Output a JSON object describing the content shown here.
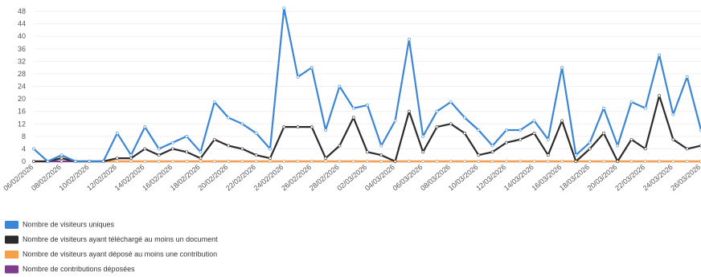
{
  "chart_data": {
    "type": "line",
    "categories": [
      "06/02/2026",
      null,
      "08/02/2026",
      null,
      "10/02/2026",
      null,
      "12/02/2026",
      null,
      "14/02/2026",
      null,
      "16/02/2026",
      null,
      "18/02/2026",
      null,
      "20/02/2026",
      null,
      "22/02/2026",
      null,
      "24/02/2026",
      null,
      "26/02/2026",
      null,
      "28/02/2026",
      null,
      "02/03/2026",
      null,
      "04/03/2026",
      null,
      "06/03/2026",
      null,
      "08/03/2026",
      null,
      "10/03/2026",
      null,
      "12/03/2026",
      null,
      "14/03/2026",
      null,
      "16/03/2026",
      null,
      "18/03/2026",
      null,
      "20/03/2026",
      null,
      "22/03/2026",
      null,
      "24/03/2026",
      null,
      "26/03/2026"
    ],
    "series": [
      {
        "name": "Nombre de visiteurs uniques",
        "color": "#3b86d6",
        "values": [
          4,
          0,
          2,
          0,
          0,
          0,
          9,
          2,
          11,
          4,
          6,
          8,
          3,
          19,
          14,
          12,
          9,
          4,
          49,
          27,
          30,
          10,
          24,
          17,
          18,
          5,
          13,
          39,
          8,
          16,
          19,
          14,
          10,
          5,
          10,
          10,
          13,
          7,
          30,
          2,
          6,
          17,
          5,
          19,
          17,
          34,
          15,
          27,
          10
        ]
      },
      {
        "name": "Nombre de visiteurs ayant téléchargé au moins un document",
        "color": "#2b2b2b",
        "values": [
          0,
          0,
          1,
          0,
          0,
          0,
          1,
          1,
          4,
          2,
          4,
          3,
          1,
          7,
          5,
          4,
          2,
          1,
          11,
          11,
          11,
          1,
          5,
          14,
          3,
          2,
          0,
          16,
          3,
          11,
          12,
          9,
          2,
          3,
          6,
          7,
          9,
          2,
          13,
          0,
          4,
          9,
          0,
          7,
          4,
          21,
          7,
          4,
          5
        ]
      },
      {
        "name": "Nombre de visiteurs ayant déposé au moins une contribution",
        "color": "#f5a04a",
        "values": [
          0,
          0,
          1,
          0,
          0,
          0,
          0,
          0,
          0,
          0,
          0,
          0,
          0,
          0,
          0,
          0,
          0,
          0,
          0,
          0,
          0,
          0,
          0,
          0,
          0,
          0,
          0,
          0,
          0,
          0,
          0,
          0,
          0,
          0,
          0,
          0,
          0,
          0,
          0,
          0,
          0,
          0,
          0,
          0,
          0,
          0,
          0,
          0,
          0
        ]
      },
      {
        "name": "Nombre de contributions déposées",
        "color": "#7d3c8c",
        "values": [
          0,
          0,
          0,
          0,
          0,
          0,
          0,
          0,
          0,
          0,
          0,
          0,
          0,
          0,
          0,
          0,
          0,
          0,
          0,
          0,
          0,
          0,
          0,
          0,
          0,
          0,
          0,
          0,
          0,
          0,
          0,
          0,
          0,
          0,
          0,
          0,
          0,
          0,
          0,
          0,
          0,
          0,
          0,
          0,
          0,
          0,
          0,
          0,
          0
        ]
      }
    ],
    "ylim": [
      0,
      48
    ],
    "yticks": [
      0,
      4,
      8,
      12,
      16,
      20,
      24,
      28,
      32,
      36,
      40,
      44,
      48
    ],
    "grid": true
  }
}
